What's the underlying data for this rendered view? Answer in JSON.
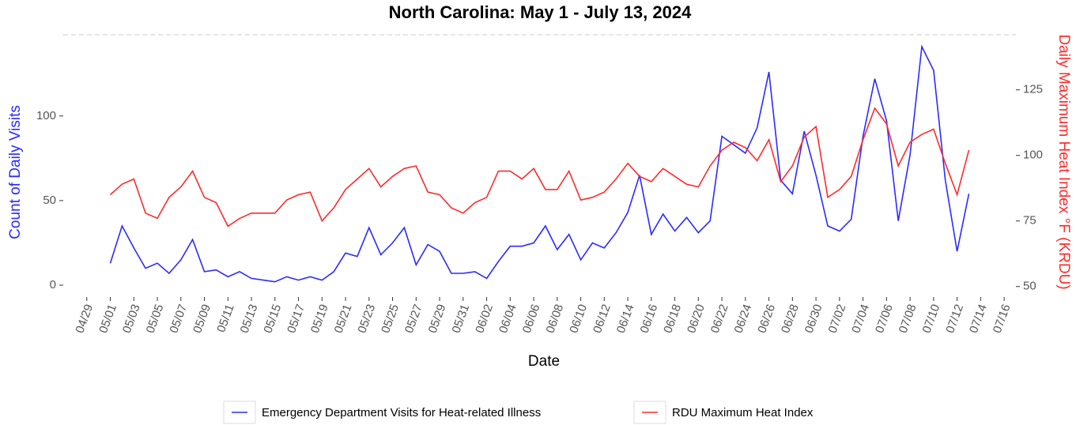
{
  "chart_data": {
    "type": "line",
    "title": "North Carolina: May 1 - July 13, 2024",
    "x_label": "Date",
    "y_label": "Count of Daily Visits",
    "y2_label": "Daily Maximum Heat Index °F (KRDU)",
    "x": [
      "05/01",
      "05/02",
      "05/03",
      "05/04",
      "05/05",
      "05/06",
      "05/07",
      "05/08",
      "05/09",
      "05/10",
      "05/11",
      "05/12",
      "05/13",
      "05/14",
      "05/15",
      "05/16",
      "05/17",
      "05/18",
      "05/19",
      "05/20",
      "05/21",
      "05/22",
      "05/23",
      "05/24",
      "05/25",
      "05/26",
      "05/27",
      "05/28",
      "05/29",
      "05/30",
      "05/31",
      "06/01",
      "06/02",
      "06/03",
      "06/04",
      "06/05",
      "06/06",
      "06/07",
      "06/08",
      "06/09",
      "06/10",
      "06/11",
      "06/12",
      "06/13",
      "06/14",
      "06/15",
      "06/16",
      "06/17",
      "06/18",
      "06/19",
      "06/20",
      "06/21",
      "06/22",
      "06/23",
      "06/24",
      "06/25",
      "06/26",
      "06/27",
      "06/28",
      "06/29",
      "06/30",
      "07/01",
      "07/02",
      "07/03",
      "07/04",
      "07/05",
      "07/06",
      "07/07",
      "07/08",
      "07/09",
      "07/10",
      "07/11",
      "07/12",
      "07/13"
    ],
    "series": [
      {
        "name": "Emergency Department Visits for Heat-related Illness",
        "color": "#2b2bff",
        "axis": "y",
        "values": [
          13,
          35,
          22,
          10,
          13,
          7,
          15,
          27,
          8,
          9,
          5,
          8,
          4,
          3,
          2,
          5,
          3,
          5,
          3,
          8,
          19,
          17,
          34,
          18,
          25,
          34,
          12,
          24,
          20,
          7,
          7,
          8,
          4,
          14,
          23,
          23,
          25,
          35,
          21,
          30,
          15,
          25,
          22,
          31,
          43,
          65,
          30,
          42,
          32,
          40,
          31,
          38,
          88,
          83,
          78,
          93,
          126,
          62,
          54,
          91,
          65,
          35,
          32,
          39,
          88,
          122,
          97,
          38,
          77,
          141,
          127,
          62,
          20,
          54
        ]
      },
      {
        "name": "RDU Maximum Heat Index",
        "color": "#ff2b2b",
        "axis": "y2",
        "values": [
          85,
          89,
          91,
          78,
          76,
          84,
          88,
          94,
          84,
          82,
          73,
          76,
          78,
          78,
          78,
          83,
          85,
          86,
          75,
          80,
          87,
          91,
          95,
          88,
          92,
          95,
          96,
          86,
          85,
          80,
          78,
          82,
          84,
          94,
          94,
          91,
          95,
          87,
          87,
          94,
          83,
          84,
          86,
          91,
          97,
          92,
          90,
          95,
          92,
          89,
          88,
          96,
          102,
          105,
          103,
          98,
          106,
          90,
          96,
          107,
          111,
          84,
          87,
          92,
          106,
          118,
          112,
          96,
          105,
          108,
          110,
          97,
          85,
          102
        ]
      }
    ],
    "xlim": [
      "04/27",
      "07/17"
    ],
    "xticks": [
      "04/29",
      "05/01",
      "05/03",
      "05/05",
      "05/07",
      "05/09",
      "05/11",
      "05/13",
      "05/15",
      "05/17",
      "05/19",
      "05/21",
      "05/23",
      "05/25",
      "05/27",
      "05/29",
      "05/31",
      "06/02",
      "06/04",
      "06/06",
      "06/08",
      "06/10",
      "06/12",
      "06/14",
      "06/16",
      "06/18",
      "06/20",
      "06/22",
      "06/24",
      "06/26",
      "06/28",
      "06/30",
      "07/02",
      "07/04",
      "07/06",
      "07/08",
      "07/10",
      "07/12",
      "07/14",
      "07/16"
    ],
    "ylim": [
      -7,
      148
    ],
    "yticks": [
      0,
      50,
      100
    ],
    "y2lim": [
      46,
      146
    ],
    "y2ticks": [
      50,
      75,
      100,
      125
    ],
    "legend": "bottom"
  }
}
